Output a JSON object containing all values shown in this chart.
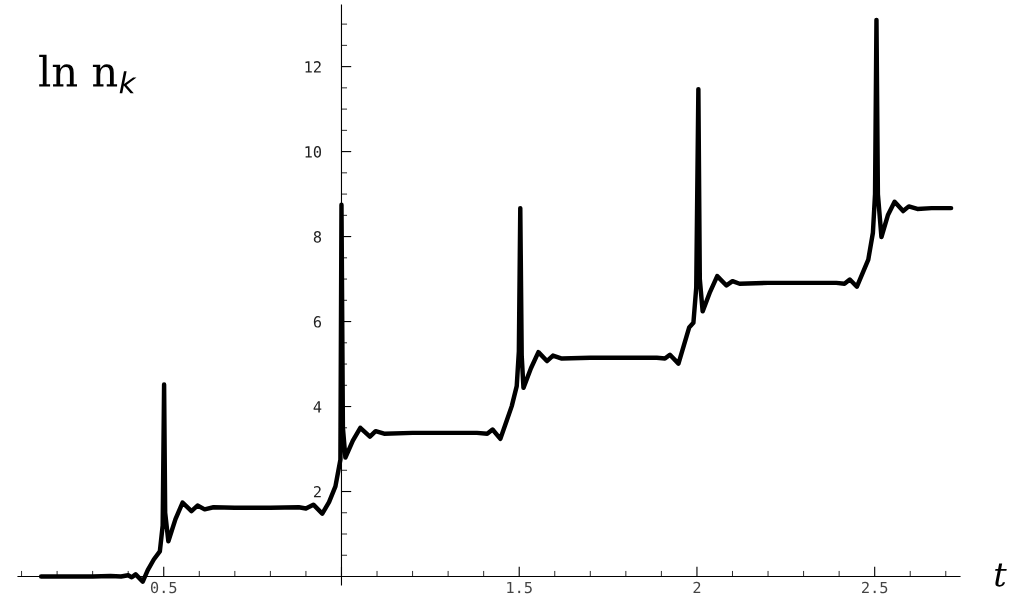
{
  "chart_data": {
    "type": "line",
    "xlabel": "t",
    "ylabel": "ln n$_{k}$",
    "xlim": [
      0.09,
      2.74
    ],
    "ylim": [
      -0.2,
      13.45
    ],
    "xticks": [
      0.5,
      {
        "value": 1,
        "label": null
      },
      1.5,
      2,
      2.5
    ],
    "yticks": [
      2,
      4,
      6,
      8,
      10,
      12
    ],
    "grid": false,
    "marker": "none",
    "line_style": "solid",
    "series": [
      {
        "color": "#000000",
        "x": [
          0.155,
          0.2,
          0.25,
          0.3,
          0.35,
          0.38,
          0.4,
          0.41,
          0.421,
          0.441,
          0.455,
          0.472,
          0.489,
          0.497,
          0.501,
          0.504,
          0.513,
          0.533,
          0.553,
          0.578,
          0.595,
          0.615,
          0.64,
          0.7,
          0.8,
          0.88,
          0.9,
          0.921,
          0.946,
          0.965,
          0.983,
          0.997,
          1.0,
          1.004,
          1.011,
          1.032,
          1.053,
          1.08,
          1.096,
          1.12,
          1.2,
          1.3,
          1.381,
          1.41,
          1.425,
          1.447,
          1.479,
          1.493,
          1.499,
          1.503,
          1.507,
          1.512,
          1.533,
          1.554,
          1.578,
          1.595,
          1.62,
          1.7,
          1.8,
          1.887,
          1.91,
          1.924,
          1.948,
          1.978,
          1.99,
          1.998,
          2.004,
          2.008,
          2.016,
          2.037,
          2.057,
          2.083,
          2.1,
          2.12,
          2.2,
          2.3,
          2.392,
          2.415,
          2.43,
          2.45,
          2.482,
          2.495,
          2.501,
          2.505,
          2.509,
          2.519,
          2.537,
          2.556,
          2.58,
          2.596,
          2.62,
          2.66,
          2.715
        ],
        "values": [
          0,
          0,
          0,
          0,
          0.01,
          0,
          0.03,
          -0.02,
          0.05,
          -0.12,
          0.15,
          0.4,
          0.59,
          1.2,
          4.52,
          1.5,
          0.83,
          1.35,
          1.74,
          1.54,
          1.67,
          1.58,
          1.63,
          1.62,
          1.62,
          1.63,
          1.6,
          1.69,
          1.48,
          1.75,
          2.12,
          2.75,
          8.75,
          3.5,
          2.8,
          3.2,
          3.5,
          3.29,
          3.42,
          3.36,
          3.38,
          3.38,
          3.38,
          3.36,
          3.46,
          3.24,
          4.01,
          4.48,
          5.3,
          8.67,
          5.2,
          4.44,
          4.9,
          5.28,
          5.07,
          5.2,
          5.13,
          5.15,
          5.15,
          5.15,
          5.13,
          5.22,
          5.01,
          5.86,
          5.97,
          6.8,
          11.47,
          7.0,
          6.24,
          6.7,
          7.07,
          6.85,
          6.95,
          6.89,
          6.91,
          6.91,
          6.91,
          6.89,
          6.99,
          6.82,
          7.46,
          8.09,
          9.0,
          13.1,
          9.0,
          7.99,
          8.5,
          8.82,
          8.6,
          8.71,
          8.65,
          8.67,
          8.67
        ]
      }
    ]
  }
}
